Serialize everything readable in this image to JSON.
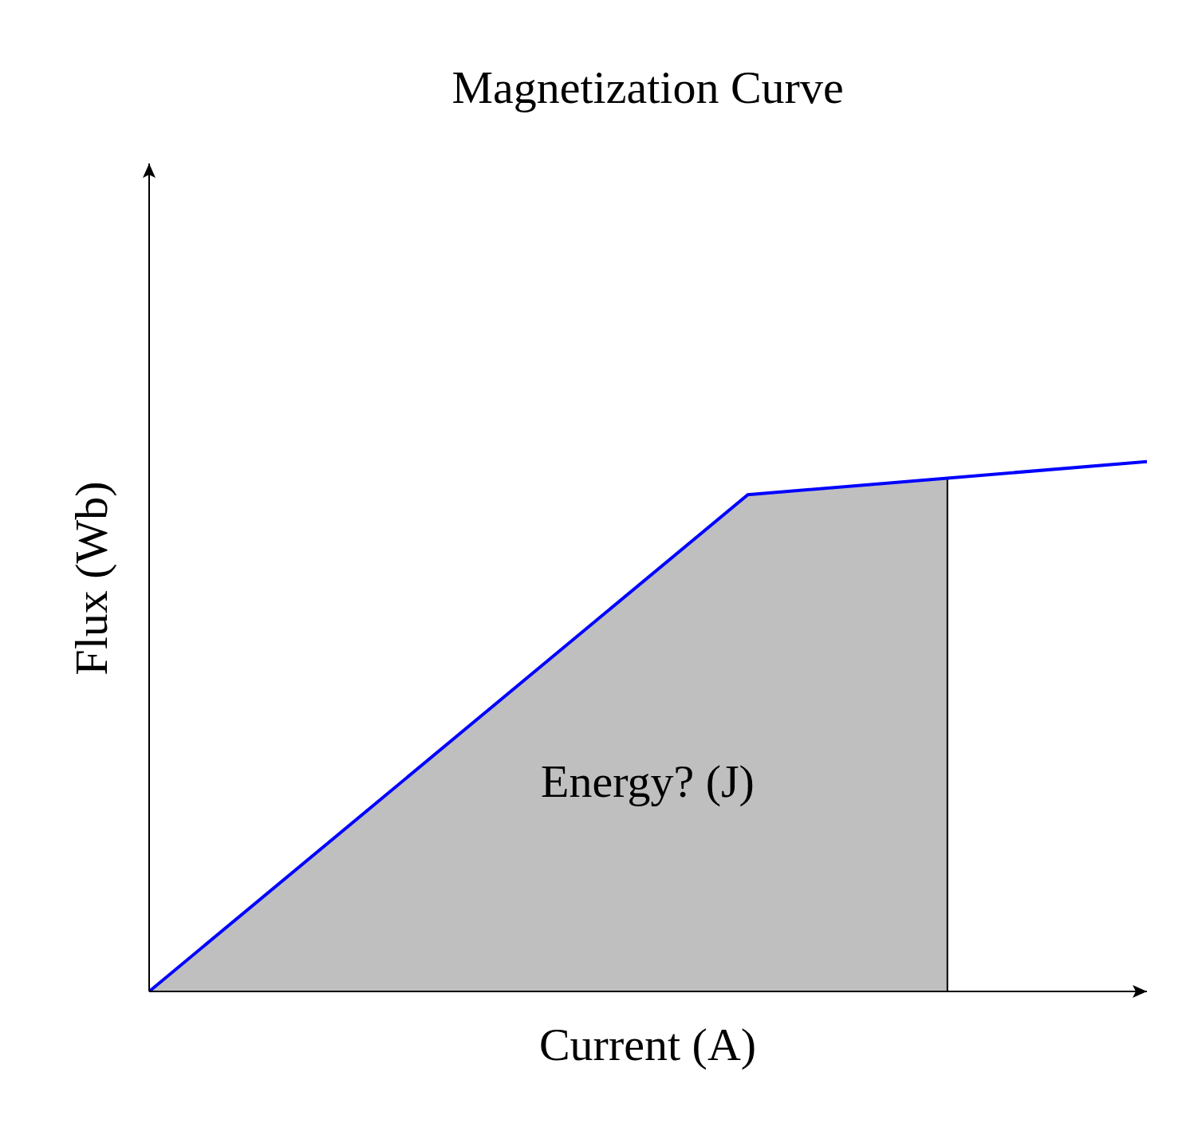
{
  "chart_data": {
    "type": "line",
    "title": "Magnetization Curve",
    "x_label": "Current (A)",
    "y_label": "Flux (Wb)",
    "x": [
      0,
      6,
      8,
      10
    ],
    "values": [
      0,
      6,
      6.2,
      6.4
    ],
    "color": "#0000ff",
    "xlim": [
      0,
      10
    ],
    "ylim": [
      0,
      10
    ],
    "tick_labels": false,
    "shaded": {
      "from": 0,
      "to": 8,
      "color": "#bfbfbf"
    },
    "annotation": "Energy? (J)"
  }
}
